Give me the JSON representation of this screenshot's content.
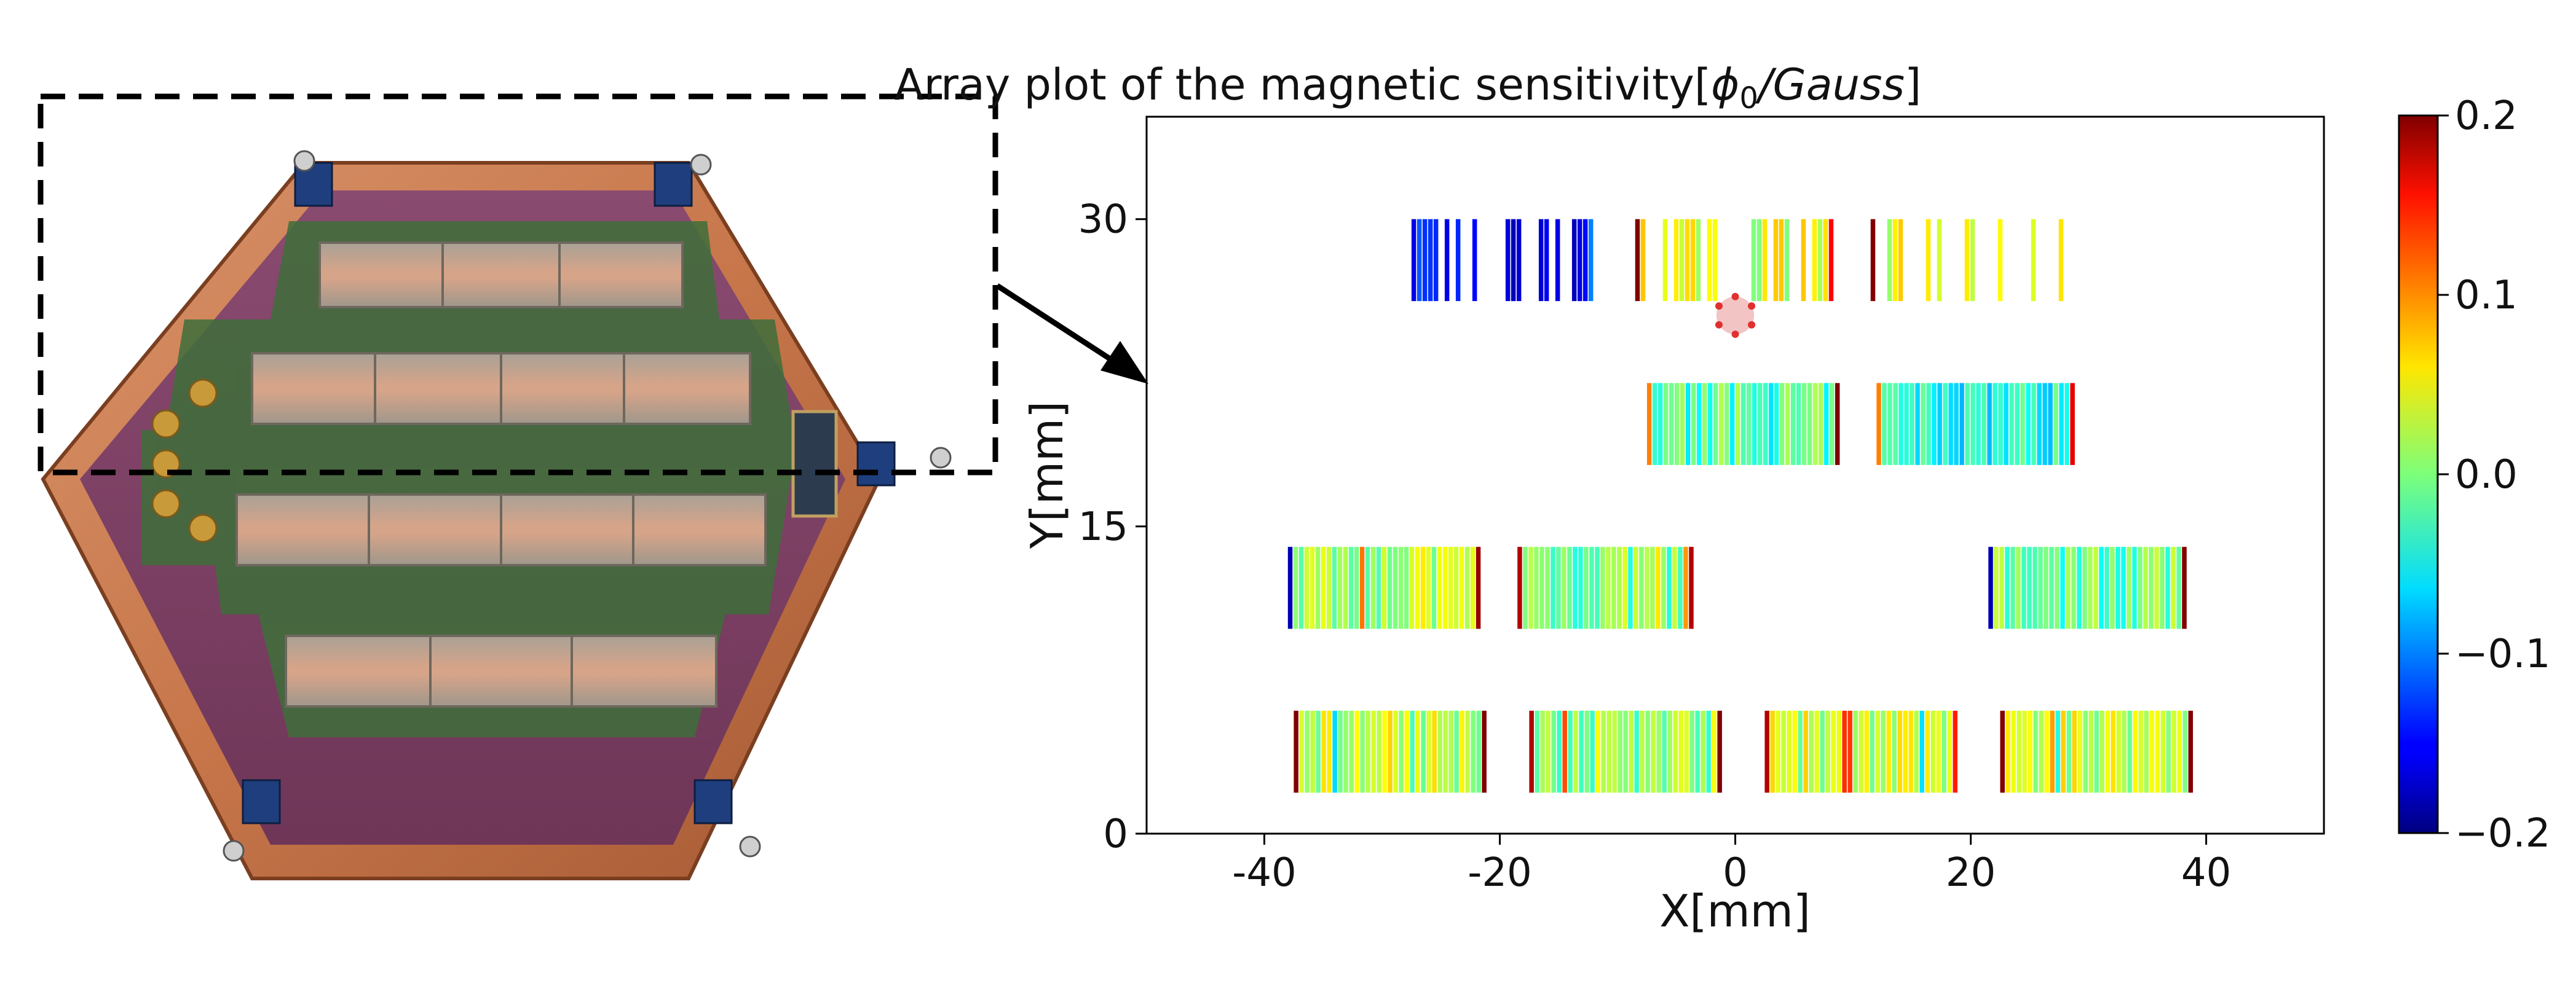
{
  "figure": {
    "photo": {
      "subject": "hexagonal-detector-module-photo",
      "colors": {
        "copper": "#c7764a",
        "pcb": "#7d3f64",
        "trace": "#3e6e3a",
        "bar": "#c9b7a3",
        "bar_edge": "#8d8577",
        "connector": "#c99a3a",
        "clip": "#1f3e7d"
      }
    }
  },
  "chart_data": {
    "type": "heatmap",
    "title_prefix": "Array plot of the magnetic sensitivity[",
    "title_symbol": "ϕ",
    "title_subscript": "0",
    "title_unit": "/Gauss",
    "title_suffix": "]",
    "xlabel": "X[mm]",
    "ylabel": "Y[mm]",
    "xlim": [
      -50,
      50
    ],
    "ylim": [
      0,
      35
    ],
    "xticks": [
      -40,
      -20,
      0,
      20,
      40
    ],
    "xtick_labels": [
      "-40",
      "-20",
      "0",
      "20",
      "40"
    ],
    "yticks": [
      0,
      15,
      30
    ],
    "ytick_labels": [
      "0",
      "15",
      "30"
    ],
    "grid": false,
    "colormap": "jet",
    "colorbar": {
      "min": -0.2,
      "max": 0.2,
      "ticks": [
        0.2,
        0.1,
        0.0,
        -0.1,
        -0.2
      ],
      "tick_labels": [
        "0.2",
        "0.1",
        "0.0",
        "−0.1",
        "−0.2"
      ]
    },
    "rows": [
      {
        "y_center": 28,
        "height": 4,
        "segments": [
          {
            "x_start": -27.5,
            "x_end": -12,
            "base": -0.15,
            "edge_left": -0.16,
            "edge_right": -0.1,
            "density": 0.55
          },
          {
            "x_start": -8.5,
            "x_end": 8,
            "base": 0.04,
            "edge_left": 0.2,
            "edge_right": 0.15,
            "density": 0.6
          },
          {
            "x_start": 11.5,
            "x_end": 27.5,
            "base": 0.04,
            "edge_left": 0.2,
            "edge_right": 0.06,
            "density": 0.35
          }
        ]
      },
      {
        "y_center": 20,
        "height": 4,
        "segments": [
          {
            "x_start": -7.5,
            "x_end": 8.5,
            "base": -0.02,
            "edge_left": 0.1,
            "edge_right": 0.2,
            "density": 1.0
          },
          {
            "x_start": 12,
            "x_end": 28.5,
            "base": -0.04,
            "edge_left": 0.1,
            "edge_right": 0.16,
            "density": 1.0
          }
        ]
      },
      {
        "y_center": 12,
        "height": 4,
        "segments": [
          {
            "x_start": -38,
            "x_end": -22,
            "base": 0.02,
            "edge_left": -0.18,
            "edge_right": 0.19,
            "density": 1.0
          },
          {
            "x_start": -18.5,
            "x_end": -3.5,
            "base": 0.0,
            "edge_left": 0.18,
            "edge_right": 0.18,
            "density": 1.0
          },
          {
            "x_start": 21.5,
            "x_end": 38,
            "base": -0.01,
            "edge_left": -0.18,
            "edge_right": 0.2,
            "density": 1.0
          }
        ]
      },
      {
        "y_center": 4,
        "height": 4,
        "segments": [
          {
            "x_start": -37.5,
            "x_end": -21.5,
            "base": 0.03,
            "edge_left": 0.2,
            "edge_right": 0.2,
            "density": 1.0
          },
          {
            "x_start": -17.5,
            "x_end": -1.5,
            "base": 0.01,
            "edge_left": 0.18,
            "edge_right": 0.2,
            "density": 1.0
          },
          {
            "x_start": 2.5,
            "x_end": 18.5,
            "base": 0.03,
            "edge_left": 0.18,
            "edge_right": 0.14,
            "density": 1.0
          },
          {
            "x_start": 22.5,
            "x_end": 38.5,
            "base": 0.03,
            "edge_left": 0.2,
            "edge_right": 0.2,
            "density": 1.0
          }
        ]
      }
    ],
    "marker": {
      "shape": "circle-dots",
      "x": 0,
      "y": 25.3,
      "radius": 1.6,
      "fill": "#f2c4c4",
      "dot_color": "#e03030"
    }
  }
}
